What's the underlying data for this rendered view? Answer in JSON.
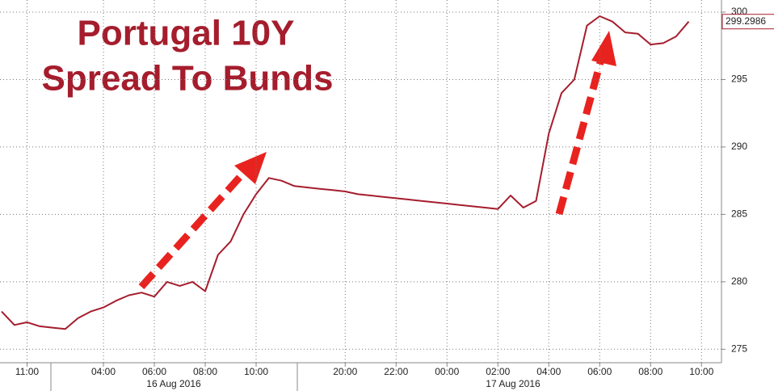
{
  "chart_data": {
    "type": "line",
    "title": [
      "Portugal 10Y",
      "Spread To Bunds"
    ],
    "categories": [
      null,
      null,
      "11:00",
      null,
      null,
      null,
      null,
      null,
      "04:00",
      null,
      null,
      null,
      "06:00",
      null,
      null,
      null,
      "08:00",
      null,
      null,
      null,
      "10:00",
      null,
      null,
      null,
      null,
      null,
      null,
      "20:00",
      null,
      null,
      null,
      "22:00",
      null,
      null,
      null,
      "00:00",
      null,
      null,
      null,
      "02:00",
      null,
      null,
      null,
      "04:00",
      null,
      null,
      null,
      "06:00",
      null,
      null,
      null,
      "08:00",
      null,
      null,
      null,
      "10:00"
    ],
    "x_groups": [
      "16 Aug 2016",
      "17 Aug 2016"
    ],
    "values": [
      277.8,
      276.8,
      277,
      276.7,
      276.6,
      276.5,
      277.3,
      277.8,
      278.1,
      278.6,
      279,
      279.2,
      278.9,
      280,
      279.7,
      280,
      279.3,
      282,
      283,
      285,
      286.5,
      287.7,
      287.5,
      287.1,
      287.0,
      286.9,
      286.8,
      286.7,
      286.5,
      286.4,
      286.3,
      286.2,
      286.1,
      286.0,
      285.9,
      285.8,
      285.7,
      285.6,
      285.5,
      285.4,
      286.4,
      285.5,
      286,
      291,
      294,
      295,
      299,
      299.7,
      299.3,
      298.5,
      298.4,
      297.6,
      297.7,
      298.2,
      299.2986,
      null
    ],
    "color": "#a51d2d",
    "ylim": [
      274,
      300.9
    ],
    "yticks": [
      275,
      280,
      285,
      290,
      295,
      300
    ],
    "grid": true
  }
}
